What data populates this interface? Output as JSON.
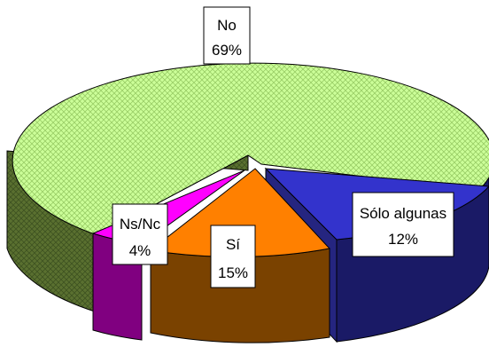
{
  "chart_data": {
    "type": "pie",
    "style": "3d-exploded",
    "slices": [
      {
        "label": "No",
        "value": 69,
        "value_label": "69%",
        "color": "#ccff99",
        "side_color": "#556b2f",
        "icon": "crosshatch-pattern"
      },
      {
        "label": "Sólo algunas",
        "value": 12,
        "value_label": "12%",
        "color": "#3333cc",
        "side_color": "#1a1a66"
      },
      {
        "label": "Sí",
        "value": 15,
        "value_label": "15%",
        "color": "#ff8000",
        "side_color": "#7a4200"
      },
      {
        "label": "Ns/Nc",
        "value": 4,
        "value_label": "4%",
        "color": "#ff00ff",
        "side_color": "#800080"
      }
    ],
    "title": "",
    "legend": "none",
    "data_labels": "boxed-inside"
  }
}
